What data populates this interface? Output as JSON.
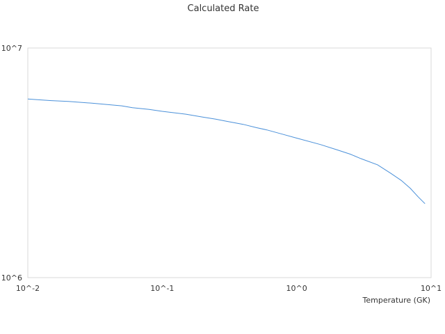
{
  "chart_data": {
    "type": "line",
    "title": "Calculated Rate",
    "xlabel": "Temperature (GK)",
    "ylabel": "",
    "x_scale": "log",
    "y_scale": "log",
    "xlim": [
      0.01,
      10
    ],
    "ylim": [
      1000000,
      10000000
    ],
    "x_ticks": [
      "10^-2",
      "10^-1",
      "10^0",
      "10^1"
    ],
    "y_ticks": [
      "10^6",
      "10^7"
    ],
    "grid": false,
    "legend": "none",
    "series": [
      {
        "color": "#4a90d9",
        "x": [
          0.01,
          0.012,
          0.015,
          0.02,
          0.03,
          0.05,
          0.06,
          0.08,
          0.1,
          0.15,
          0.2,
          0.25,
          0.3,
          0.4,
          0.5,
          0.6,
          0.8,
          1.0,
          1.5,
          2.0,
          2.5,
          3.0,
          4.0,
          5.0,
          6.0,
          7.0,
          8.0,
          9.0
        ],
        "values": [
          6000000,
          5950000,
          5900000,
          5850000,
          5750000,
          5600000,
          5500000,
          5400000,
          5300000,
          5150000,
          5000000,
          4900000,
          4800000,
          4650000,
          4500000,
          4400000,
          4200000,
          4050000,
          3800000,
          3600000,
          3450000,
          3300000,
          3100000,
          2850000,
          2650000,
          2450000,
          2250000,
          2100000
        ]
      }
    ]
  }
}
